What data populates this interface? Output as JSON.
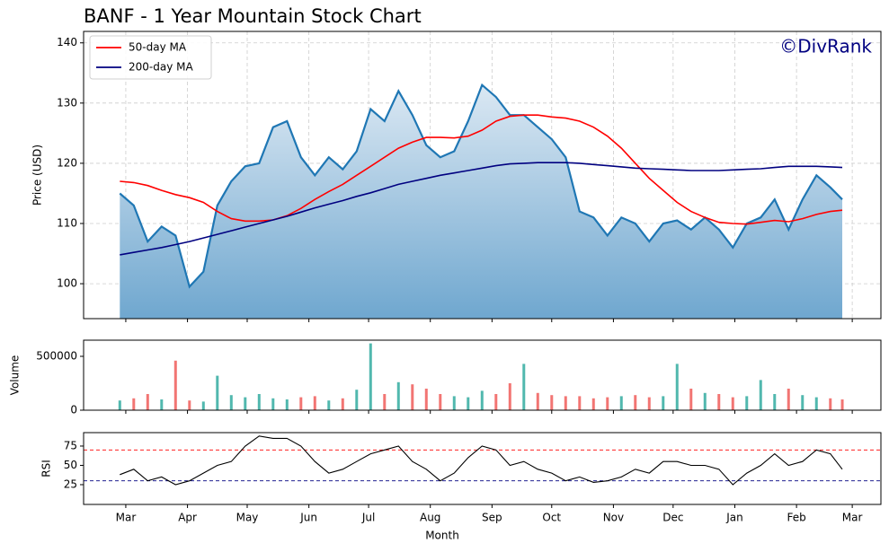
{
  "chart_data": {
    "type": "line",
    "title": "BANF - 1 Year Mountain Stock Chart",
    "watermark": "©DivRank",
    "xlabel": "Month",
    "ylabel": "Price (USD)",
    "x": [
      -3,
      4,
      11,
      18,
      25,
      32,
      39,
      46,
      53,
      60,
      67,
      74,
      81,
      88,
      95,
      102,
      109,
      116,
      123,
      130,
      137,
      144,
      151,
      158,
      165,
      172,
      179,
      186,
      193,
      200,
      207,
      214,
      221,
      228,
      235,
      242,
      249,
      256,
      263,
      270,
      277,
      284,
      291,
      298,
      305,
      312,
      319,
      326,
      333,
      340,
      347,
      354,
      360
    ],
    "xlim": [
      -21.2,
      379.4
    ],
    "xticks": [
      {
        "value": 0,
        "label": "Mar"
      },
      {
        "value": 31,
        "label": "Apr"
      },
      {
        "value": 61,
        "label": "May"
      },
      {
        "value": 92,
        "label": "Jun"
      },
      {
        "value": 122,
        "label": "Jul"
      },
      {
        "value": 153,
        "label": "Aug"
      },
      {
        "value": 184,
        "label": "Sep"
      },
      {
        "value": 214,
        "label": "Oct"
      },
      {
        "value": 245,
        "label": "Nov"
      },
      {
        "value": 275,
        "label": "Dec"
      },
      {
        "value": 306,
        "label": "Jan"
      },
      {
        "value": 337,
        "label": "Feb"
      },
      {
        "value": 365,
        "label": "Mar"
      }
    ],
    "ylim": [
      94.2,
      141.9
    ],
    "yticks": [
      100,
      110,
      120,
      130,
      140
    ],
    "grid": true,
    "legend": "upper left",
    "price": {
      "color": "#1f77b4",
      "fill_top": "#dbe8f3",
      "fill_bottom": "#6fa7cf",
      "values": [
        115,
        113,
        107,
        109.5,
        108,
        99.5,
        102,
        113,
        117,
        119.5,
        120,
        126,
        127,
        121,
        118,
        121,
        119,
        122,
        129,
        127,
        132,
        128,
        123,
        121,
        122,
        127,
        133,
        131,
        128,
        128,
        126,
        124,
        121,
        112,
        111,
        108,
        111,
        110,
        107,
        110,
        110.5,
        109,
        111,
        109,
        106,
        110,
        111,
        114,
        109,
        114,
        118,
        116,
        114
      ]
    },
    "series": [
      {
        "name": "50-day MA",
        "color": "#ff0000",
        "values": [
          117,
          116.8,
          116.3,
          115.5,
          114.8,
          114.3,
          113.5,
          112,
          110.8,
          110.4,
          110.4,
          110.6,
          111.3,
          112.5,
          114,
          115.3,
          116.5,
          118,
          119.5,
          121,
          122.5,
          123.5,
          124.3,
          124.3,
          124.2,
          124.5,
          125.5,
          127,
          127.8,
          128,
          128,
          127.7,
          127.5,
          127,
          126,
          124.5,
          122.5,
          120,
          117.5,
          115.5,
          113.5,
          112,
          111,
          110.2,
          110,
          109.9,
          110.2,
          110.5,
          110.3,
          110.8,
          111.5,
          112,
          112.2
        ]
      },
      {
        "name": "200-day MA",
        "color": "#000080",
        "values": [
          104.8,
          105.2,
          105.6,
          106,
          106.5,
          107,
          107.6,
          108.2,
          108.8,
          109.4,
          110,
          110.6,
          111.2,
          111.9,
          112.6,
          113.2,
          113.8,
          114.5,
          115.1,
          115.8,
          116.5,
          117,
          117.5,
          118,
          118.4,
          118.8,
          119.2,
          119.6,
          119.9,
          120,
          120.1,
          120.1,
          120.1,
          120,
          119.8,
          119.6,
          119.4,
          119.2,
          119.1,
          119,
          118.9,
          118.8,
          118.8,
          118.8,
          118.9,
          119,
          119.1,
          119.3,
          119.5,
          119.5,
          119.5,
          119.4,
          119.3
        ]
      }
    ],
    "volume": {
      "type": "bar",
      "ylabel": "Volume",
      "ylim": [
        0,
        650000
      ],
      "yticks": [
        0,
        500000
      ],
      "up_color": "#26a69a",
      "down_color": "#ef5350",
      "values": [
        90000,
        110000,
        150000,
        100000,
        460000,
        90000,
        80000,
        320000,
        140000,
        120000,
        150000,
        110000,
        100000,
        120000,
        130000,
        90000,
        110000,
        190000,
        620000,
        150000,
        260000,
        240000,
        200000,
        150000,
        130000,
        120000,
        180000,
        150000,
        250000,
        430000,
        160000,
        140000,
        130000,
        130000,
        110000,
        120000,
        130000,
        140000,
        120000,
        130000,
        430000,
        200000,
        160000,
        150000,
        120000,
        130000,
        280000,
        150000,
        200000,
        140000,
        120000,
        110000,
        100000
      ]
    },
    "rsi": {
      "type": "line",
      "ylabel": "RSI",
      "color": "#000000",
      "ylim": [
        -0.6,
        92.4
      ],
      "yticks": [
        25,
        50,
        75
      ],
      "overbought": 70,
      "overbought_color": "#ff0000",
      "oversold": 30,
      "oversold_color": "#000080",
      "values": [
        38,
        45,
        30,
        35,
        25,
        30,
        40,
        50,
        55,
        75,
        88,
        85,
        85,
        75,
        55,
        40,
        45,
        55,
        65,
        70,
        75,
        55,
        45,
        30,
        40,
        60,
        75,
        70,
        50,
        55,
        45,
        40,
        30,
        35,
        28,
        30,
        35,
        45,
        40,
        55,
        55,
        50,
        50,
        45,
        25,
        40,
        50,
        65,
        50,
        55,
        70,
        65,
        45
      ]
    }
  }
}
